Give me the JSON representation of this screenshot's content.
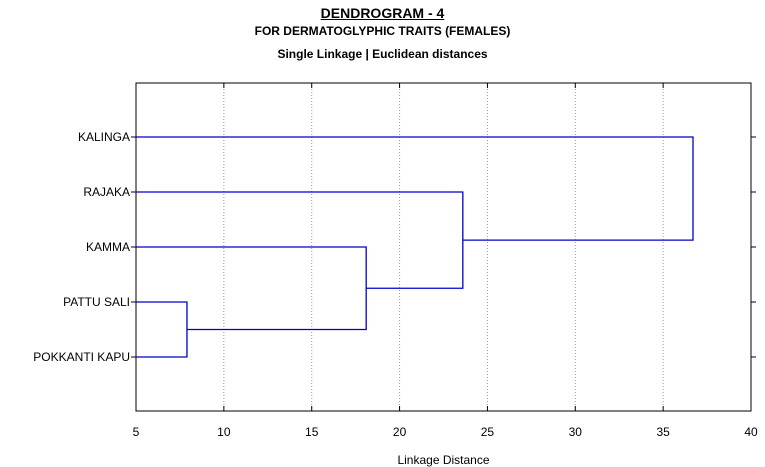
{
  "chart_data": {
    "type": "dendrogram",
    "title": "DENDROGRAM - 4",
    "subtitle": "FOR DERMATOGLYPHIC TRAITS (FEMALES)",
    "subtitle2": "Single Linkage |  Euclidean distances",
    "xlabel": "Linkage Distance",
    "xlim": [
      5,
      40
    ],
    "xticks": [
      "5",
      "10",
      "15",
      "20",
      "25",
      "30",
      "35",
      "40"
    ],
    "grid": true,
    "leaves": [
      "KALINGA",
      "RAJAKA",
      "KAMMA",
      "PATTU SALI",
      "POKKANTI KAPU"
    ],
    "merges": [
      {
        "a": "PATTU SALI",
        "b": "POKKANTI KAPU",
        "distance": 7.9
      },
      {
        "a": "KAMMA",
        "b": "PATTU SALI + POKKANTI KAPU",
        "distance": 18.1
      },
      {
        "a": "RAJAKA",
        "b": "KAMMA + PATTU SALI + POKKANTI KAPU",
        "distance": 23.6
      },
      {
        "a": "KALINGA",
        "b": "RAJAKA + KAMMA + PATTU SALI + POKKANTI KAPU",
        "distance": 36.7
      }
    ],
    "line_color": "#0000cc"
  }
}
